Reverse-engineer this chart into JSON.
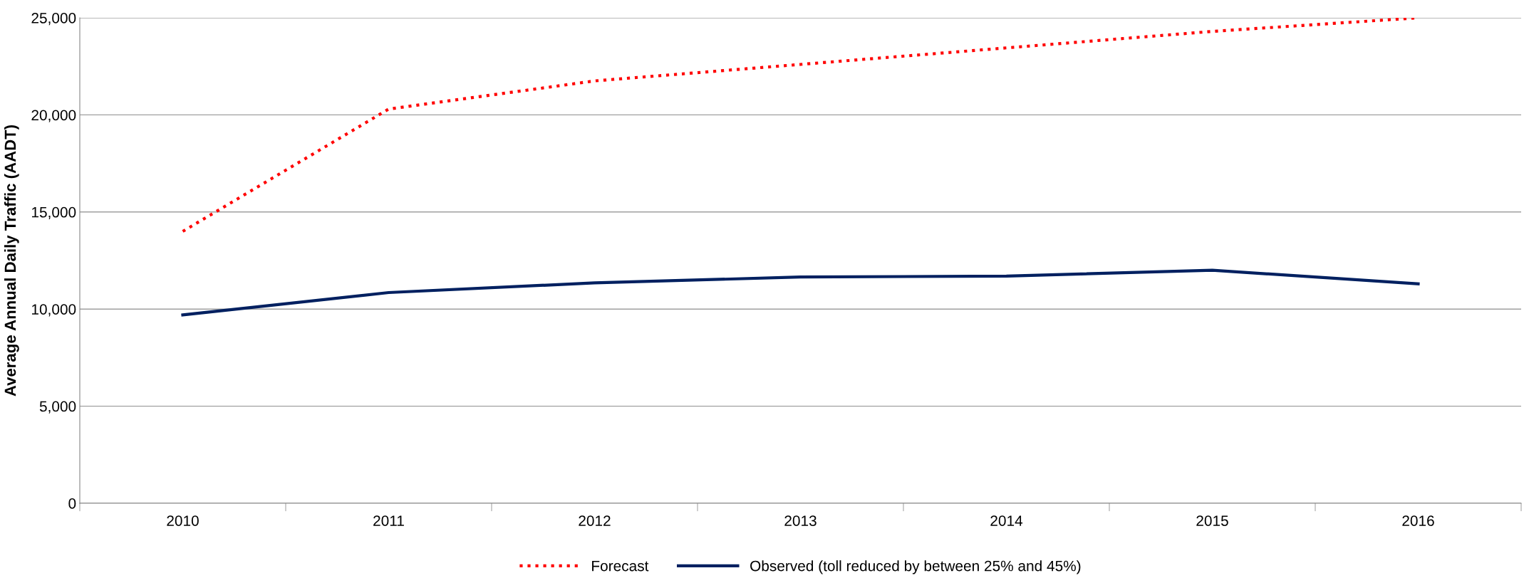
{
  "chart_data": {
    "type": "line",
    "ylabel": "Average Annual Daily Traffic (AADT)",
    "categories": [
      "2010",
      "2011",
      "2012",
      "2013",
      "2014",
      "2015",
      "2016"
    ],
    "series": [
      {
        "name": "Forecast",
        "color": "#ff0000",
        "line_style": "dotted",
        "values": [
          14000,
          20300,
          21750,
          22600,
          23450,
          24300,
          25000
        ]
      },
      {
        "name": "Observed (toll reduced by between 25% and 45%)",
        "color": "#002060",
        "line_style": "solid",
        "values": [
          9700,
          10850,
          11350,
          11650,
          11700,
          12000,
          11300
        ]
      }
    ],
    "ylim": [
      0,
      25000
    ],
    "yticks": [
      {
        "value": 0,
        "label": "0"
      },
      {
        "value": 5000,
        "label": "5,000"
      },
      {
        "value": 10000,
        "label": "10,000"
      },
      {
        "value": 15000,
        "label": "15,000"
      },
      {
        "value": 20000,
        "label": "20,000"
      },
      {
        "value": 25000,
        "label": "25,000"
      }
    ],
    "grid": "y",
    "legend": "bottom",
    "marker": "none"
  }
}
